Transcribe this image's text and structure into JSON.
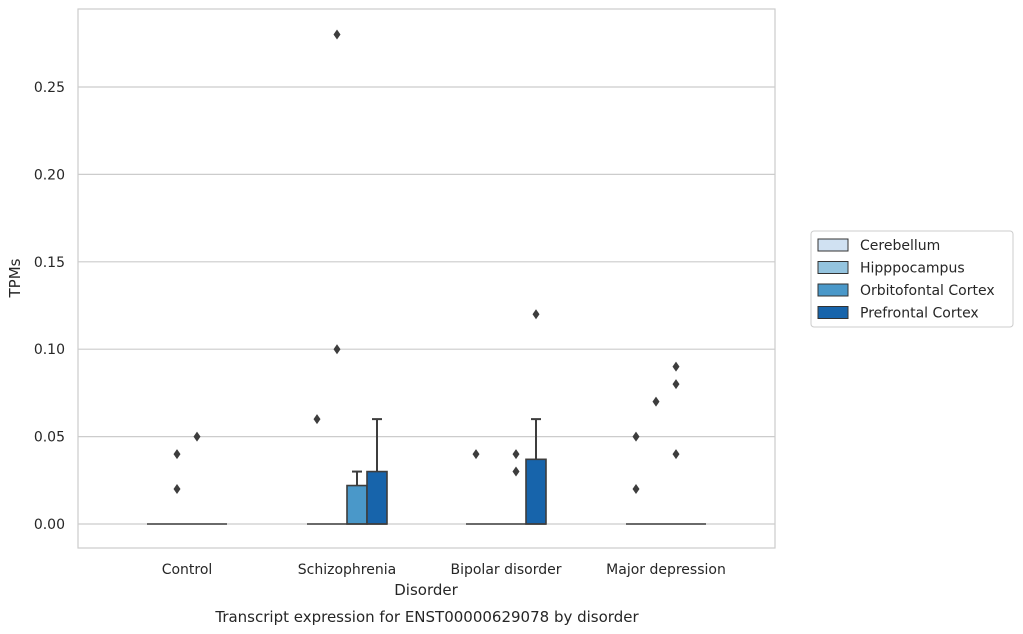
{
  "chart_data": {
    "type": "box",
    "xlabel": "Disorder",
    "ylabel": "TPMs",
    "caption": "Transcript expression for ENST00000629078 by disorder",
    "ylim": [
      -0.014,
      0.295
    ],
    "yticks": [
      "0.00",
      "0.05",
      "0.10",
      "0.15",
      "0.20",
      "0.25"
    ],
    "ytick_values": [
      0.0,
      0.05,
      0.1,
      0.15,
      0.2,
      0.25
    ],
    "grid": true,
    "legend_position": "right",
    "categories": [
      "Control",
      "Schizophrenia",
      "Bipolar disorder",
      "Major depression"
    ],
    "series": [
      {
        "name": "Cerebellum",
        "color": "#d0e1f2",
        "boxes": [
          {
            "q1": 0,
            "median": 0,
            "q3": 0,
            "whisker_low": 0,
            "whisker_high": 0,
            "outliers": []
          },
          {
            "q1": 0,
            "median": 0,
            "q3": 0,
            "whisker_low": 0,
            "whisker_high": 0,
            "outliers": [
              0.06
            ]
          },
          {
            "q1": 0,
            "median": 0,
            "q3": 0,
            "whisker_low": 0,
            "whisker_high": 0,
            "outliers": [
              0.04
            ]
          },
          {
            "q1": 0,
            "median": 0,
            "q3": 0,
            "whisker_low": 0,
            "whisker_high": 0,
            "outliers": [
              0.02,
              0.05
            ]
          }
        ]
      },
      {
        "name": "Hipppocampus",
        "color": "#94c4df",
        "boxes": [
          {
            "q1": 0,
            "median": 0,
            "q3": 0,
            "whisker_low": 0,
            "whisker_high": 0,
            "outliers": [
              0.02,
              0.04
            ]
          },
          {
            "q1": 0,
            "median": 0,
            "q3": 0,
            "whisker_low": 0,
            "whisker_high": 0,
            "outliers": [
              0.1,
              0.28
            ]
          },
          {
            "q1": 0,
            "median": 0,
            "q3": 0,
            "whisker_low": 0,
            "whisker_high": 0,
            "outliers": []
          },
          {
            "q1": 0,
            "median": 0,
            "q3": 0,
            "whisker_low": 0,
            "whisker_high": 0,
            "outliers": [
              0.07
            ]
          }
        ]
      },
      {
        "name": "Orbitofontal Cortex",
        "color": "#4a98c9",
        "boxes": [
          {
            "q1": 0,
            "median": 0,
            "q3": 0,
            "whisker_low": 0,
            "whisker_high": 0,
            "outliers": [
              0.05
            ]
          },
          {
            "q1": 0,
            "median": 0,
            "q3": 0.022,
            "whisker_low": 0,
            "whisker_high": 0.03,
            "outliers": []
          },
          {
            "q1": 0,
            "median": 0,
            "q3": 0,
            "whisker_low": 0,
            "whisker_high": 0,
            "outliers": [
              0.03,
              0.04
            ]
          },
          {
            "q1": 0,
            "median": 0,
            "q3": 0,
            "whisker_low": 0,
            "whisker_high": 0,
            "outliers": [
              0.04,
              0.08,
              0.09
            ]
          }
        ]
      },
      {
        "name": "Prefrontal Cortex",
        "color": "#1764ab",
        "boxes": [
          {
            "q1": 0,
            "median": 0,
            "q3": 0,
            "whisker_low": 0,
            "whisker_high": 0,
            "outliers": []
          },
          {
            "q1": 0,
            "median": 0,
            "q3": 0.03,
            "whisker_low": 0,
            "whisker_high": 0.06,
            "outliers": []
          },
          {
            "q1": 0,
            "median": 0,
            "q3": 0.037,
            "whisker_low": 0,
            "whisker_high": 0.06,
            "outliers": [
              0.12
            ]
          },
          {
            "q1": 0,
            "median": 0,
            "q3": 0,
            "whisker_low": 0,
            "whisker_high": 0,
            "outliers": []
          }
        ]
      }
    ]
  }
}
